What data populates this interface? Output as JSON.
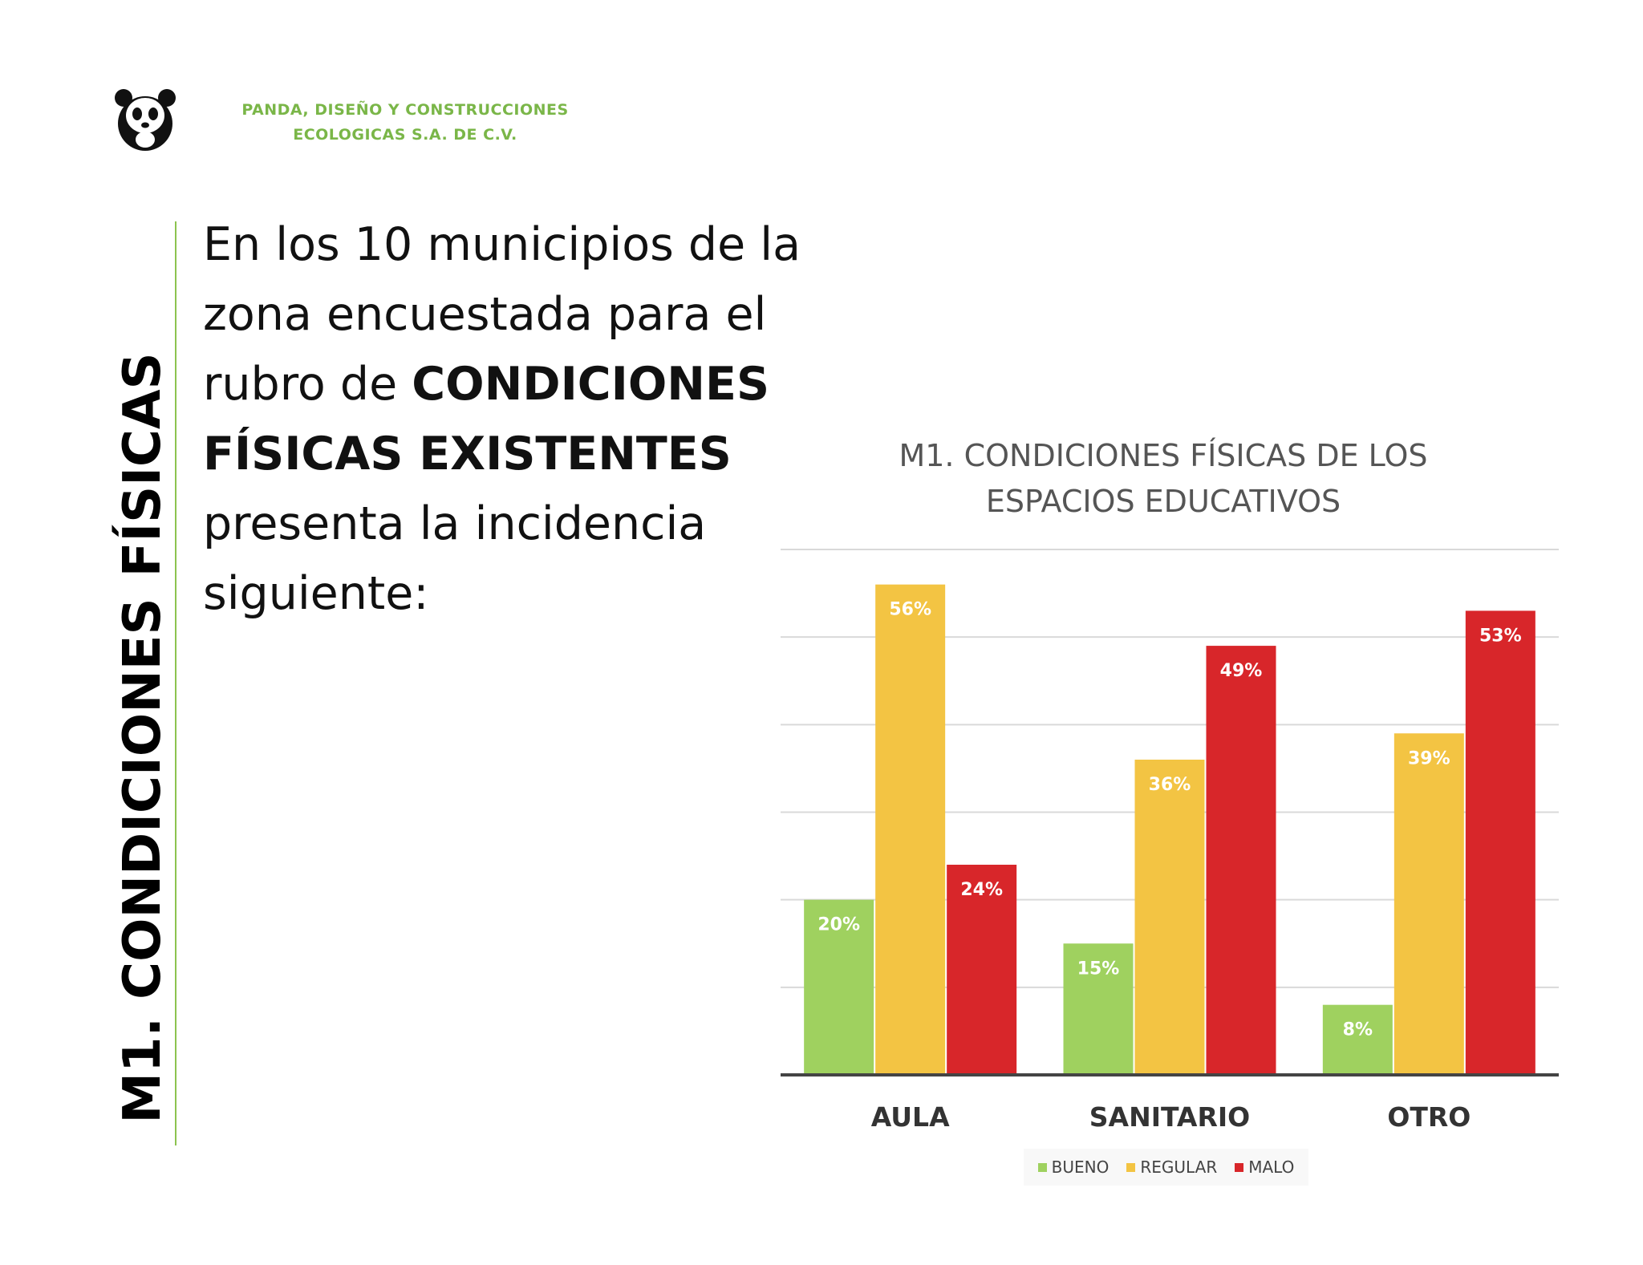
{
  "header": {
    "company_line1": "PANDA, DISEÑO Y CONSTRUCCIONES",
    "company_line2": "ECOLOGICAS S.A. DE C.V.",
    "logo_icon": "panda-logo-icon"
  },
  "side_title": {
    "part1": "M1. CONDICIONES",
    "part2": "FÍSICAS"
  },
  "intro": {
    "line1": "En los 10 municipios de la",
    "line2": "zona encuestada para el",
    "line3_prefix": "rubro de ",
    "line3_bold": "CONDICIONES",
    "line4_bold": "FÍSICAS EXISTENTES",
    "line5": "presenta la incidencia",
    "line6": "siguiente:"
  },
  "chart_data": {
    "type": "bar",
    "title_line1": "M1. CONDICIONES FÍSICAS DE LOS",
    "title_line2": "ESPACIOS EDUCATIVOS",
    "categories": [
      "AULA",
      "SANITARIO",
      "OTRO"
    ],
    "series": [
      {
        "name": "BUENO",
        "color": "#9fd15f",
        "values": [
          20,
          15,
          8
        ],
        "labels": [
          "20%",
          "15%",
          "8%"
        ]
      },
      {
        "name": "REGULAR",
        "color": "#f3c443",
        "values": [
          56,
          36,
          39
        ],
        "labels": [
          "56%",
          "36%",
          "39%"
        ]
      },
      {
        "name": "MALO",
        "color": "#d8262a",
        "values": [
          24,
          49,
          53
        ],
        "labels": [
          "24%",
          "49%",
          "53%"
        ]
      }
    ],
    "ylim": [
      0,
      60
    ],
    "grid": true,
    "legend_position": "bottom"
  }
}
